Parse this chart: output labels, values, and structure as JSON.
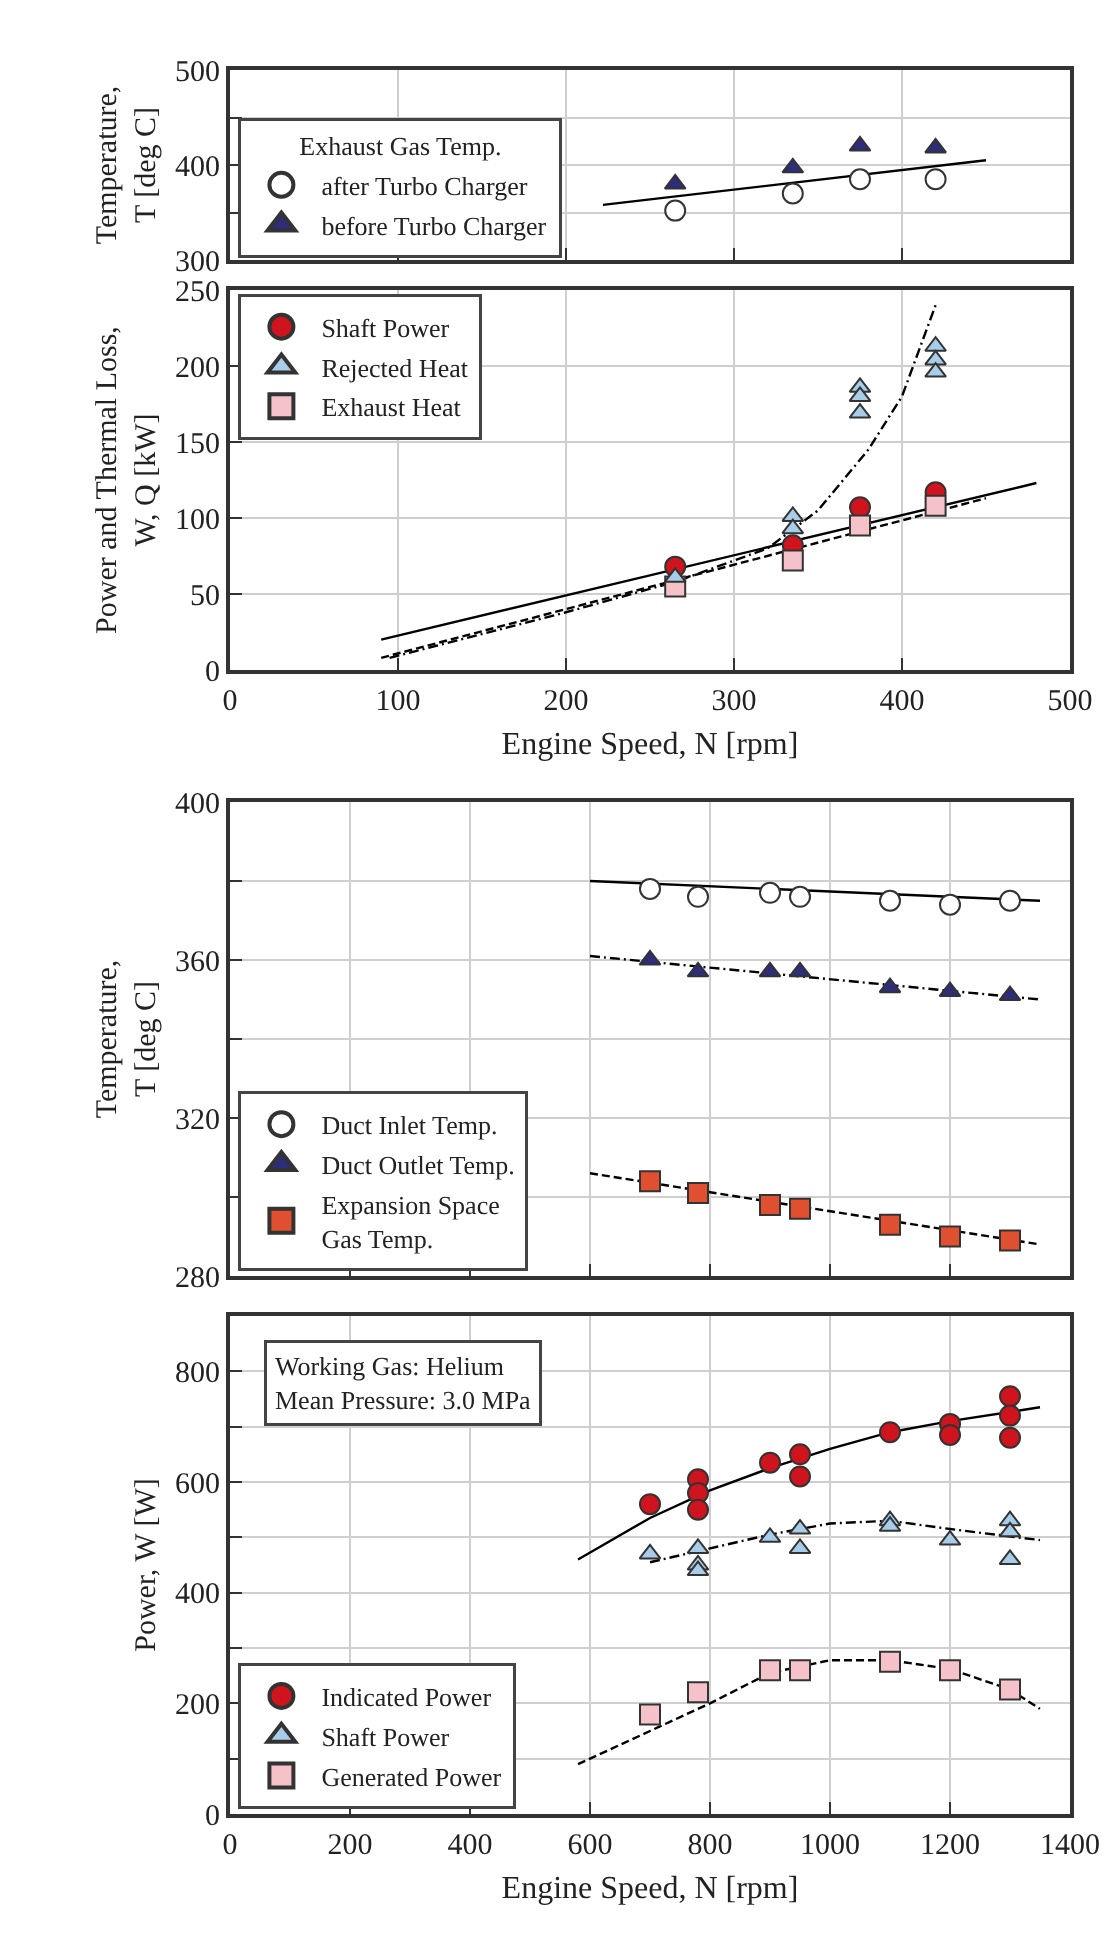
{
  "chart_data": [
    {
      "type": "scatter",
      "ylabel": "Temperature,\nT [deg C]",
      "legend_title": "Exhaust Gas Temp.",
      "legend": "bottom left",
      "grid": true,
      "tick_labels": "y",
      "xlim": [
        0,
        500
      ],
      "xticks": [
        0,
        100,
        200,
        300,
        400,
        500
      ],
      "ylim": [
        300,
        500
      ],
      "yticks": [
        300,
        {
          "value": 350,
          "label": null
        },
        400,
        {
          "value": 450,
          "label": null
        },
        500
      ],
      "series": [
        {
          "name": "after Turbo Charger",
          "color": "#ffffff",
          "marker": "circle",
          "x": [
            265,
            335,
            375,
            420
          ],
          "values": [
            352,
            370,
            385,
            385
          ]
        },
        {
          "name": "before Turbo Charger",
          "color": "#2d2d7a",
          "marker": "triangle",
          "x": [
            265,
            335,
            375,
            420
          ],
          "values": [
            380,
            397,
            420,
            418
          ]
        },
        {
          "type": "line",
          "color": "#000000",
          "line_style": "solid",
          "x": [
            222,
            450
          ],
          "values": [
            358,
            405
          ]
        }
      ]
    },
    {
      "type": "scatter",
      "xlabel": "Engine Speed, N [rpm]",
      "ylabel": "Power and Thermal Loss,\nW, Q [kW]",
      "legend": "top left",
      "grid": true,
      "xlim": [
        0,
        500
      ],
      "xticks": [
        0,
        100,
        200,
        300,
        400,
        500
      ],
      "ylim": [
        0,
        250
      ],
      "yticks": [
        0,
        50,
        100,
        150,
        200,
        250
      ],
      "series": [
        {
          "name": "Shaft Power",
          "color": "#d0141e",
          "marker": "circle",
          "x": [
            265,
            335,
            375,
            420
          ],
          "values": [
            68,
            82,
            107,
            117
          ]
        },
        {
          "name": "Rejected Heat",
          "color": "#a8cde8",
          "marker": "triangle",
          "x": [
            265,
            335,
            335,
            375,
            375,
            375,
            420,
            420,
            420
          ],
          "values": [
            61,
            101,
            93,
            186,
            180,
            169,
            213,
            204,
            196
          ]
        },
        {
          "name": "Exhaust Heat",
          "color": "#f4c2c8",
          "marker": "square",
          "x": [
            265,
            335,
            375,
            420
          ],
          "values": [
            55,
            72,
            95,
            108
          ]
        },
        {
          "type": "line",
          "color": "#000000",
          "line_style": "solid",
          "x": [
            90,
            480
          ],
          "values": [
            20,
            123
          ]
        },
        {
          "type": "line",
          "color": "#000000",
          "line_style": "dashdot",
          "x": [
            95,
            200,
            265,
            320,
            350,
            380,
            400,
            420
          ],
          "values": [
            8,
            38,
            58,
            80,
            105,
            145,
            180,
            240
          ]
        },
        {
          "type": "line",
          "color": "#000000",
          "line_style": "dashed",
          "x": [
            90,
            450
          ],
          "values": [
            8,
            113
          ]
        }
      ]
    },
    {
      "type": "scatter",
      "ylabel": "Temperature,\nT [deg C]",
      "legend": "bottom left",
      "grid": true,
      "tick_labels": "y",
      "xlim": [
        0,
        1400
      ],
      "xticks": [
        0,
        200,
        400,
        600,
        800,
        1000,
        1200,
        1400
      ],
      "ylim": [
        280,
        400
      ],
      "yticks": [
        280,
        {
          "value": 300,
          "label": null
        },
        320,
        {
          "value": 340,
          "label": null
        },
        360,
        {
          "value": 380,
          "label": null
        },
        400
      ],
      "series": [
        {
          "name": "Duct Inlet Temp.",
          "color": "#ffffff",
          "marker": "circle",
          "x": [
            700,
            780,
            900,
            950,
            1100,
            1200,
            1300
          ],
          "values": [
            378,
            376,
            377,
            376,
            375,
            374,
            375
          ]
        },
        {
          "name": "Duct Outlet Temp.",
          "color": "#2d2d7a",
          "marker": "triangle",
          "x": [
            700,
            780,
            900,
            950,
            1100,
            1200,
            1300
          ],
          "values": [
            360,
            357,
            357,
            357,
            353,
            352,
            351
          ]
        },
        {
          "name": "Expansion Space\nGas Temp.",
          "color": "#e05030",
          "marker": "square",
          "x": [
            700,
            780,
            900,
            950,
            1100,
            1200,
            1300
          ],
          "values": [
            304,
            301,
            298,
            297,
            293,
            290,
            289
          ]
        },
        {
          "type": "line",
          "color": "#000000",
          "line_style": "solid",
          "x": [
            600,
            1350
          ],
          "values": [
            380,
            375
          ]
        },
        {
          "type": "line",
          "color": "#000000",
          "line_style": "dashdot",
          "x": [
            600,
            1350
          ],
          "values": [
            361,
            350
          ]
        },
        {
          "type": "line",
          "color": "#000000",
          "line_style": "dashed",
          "x": [
            600,
            1350
          ],
          "values": [
            306,
            288
          ]
        }
      ]
    },
    {
      "type": "scatter",
      "xlabel": "Engine Speed, N [rpm]",
      "ylabel": "Power, W [W]",
      "legend": "bottom left",
      "grid": true,
      "xlim": [
        0,
        1400
      ],
      "xticks": [
        0,
        200,
        400,
        600,
        800,
        1000,
        1200,
        1400
      ],
      "ylim": [
        0,
        900
      ],
      "yticks": [
        0,
        {
          "value": 100,
          "label": null
        },
        200,
        {
          "value": 300,
          "label": null
        },
        400,
        {
          "value": 500,
          "label": null
        },
        600,
        {
          "value": 700,
          "label": null
        },
        800
      ],
      "annotations": [
        "Working Gas: Helium\nMean Pressure: 3.0 MPa"
      ],
      "series": [
        {
          "name": "Indicated Power",
          "color": "#d0141e",
          "marker": "circle",
          "x": [
            700,
            780,
            780,
            780,
            900,
            950,
            950,
            1100,
            1200,
            1200,
            1300,
            1300,
            1300
          ],
          "values": [
            560,
            605,
            580,
            550,
            635,
            650,
            610,
            690,
            705,
            685,
            755,
            720,
            680
          ]
        },
        {
          "name": "Shaft Power",
          "color": "#a8cde8",
          "marker": "triangle",
          "x": [
            700,
            780,
            780,
            780,
            900,
            950,
            950,
            1100,
            1100,
            1200,
            1300,
            1300,
            1300
          ],
          "values": [
            470,
            480,
            450,
            440,
            500,
            515,
            480,
            530,
            520,
            495,
            530,
            510,
            460
          ]
        },
        {
          "name": "Generated Power",
          "color": "#f4c2c8",
          "marker": "square",
          "x": [
            700,
            780,
            900,
            950,
            1100,
            1200,
            1300
          ],
          "values": [
            180,
            220,
            260,
            260,
            275,
            260,
            225
          ]
        },
        {
          "type": "line",
          "color": "#000000",
          "line_style": "solid",
          "x": [
            580,
            700,
            800,
            900,
            1000,
            1100,
            1200,
            1350
          ],
          "values": [
            460,
            535,
            585,
            625,
            660,
            690,
            710,
            735
          ]
        },
        {
          "type": "line",
          "color": "#000000",
          "line_style": "dashdot",
          "x": [
            700,
            800,
            900,
            1000,
            1100,
            1200,
            1350
          ],
          "values": [
            455,
            480,
            505,
            525,
            530,
            515,
            495
          ]
        },
        {
          "type": "line",
          "color": "#000000",
          "line_style": "dashed",
          "x": [
            580,
            700,
            800,
            900,
            1000,
            1100,
            1200,
            1300,
            1350
          ],
          "values": [
            90,
            150,
            200,
            255,
            278,
            278,
            262,
            225,
            190
          ]
        }
      ]
    }
  ]
}
